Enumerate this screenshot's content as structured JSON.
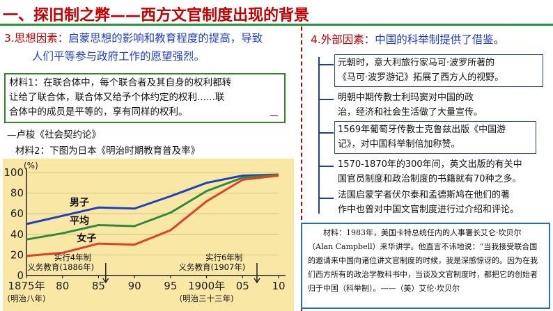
{
  "title": "一、探旧制之弊——西方文官制度出现的背景",
  "left": {
    "heading_label": "3.思想因素：",
    "heading_text_1": "启蒙思想的影响和教育程度的提高，导致",
    "heading_text_2": "人们平等参与政府工作的愿望强烈。",
    "material1_lines": [
      "材料1：在联合体中，每个联合者及其自身的权利都转",
      "让给了联合体，联合体又给予个体约定的权利......联",
      "合体中的成员是平等的，享有同样的权利。"
    ],
    "material1_dash": "—",
    "citation": "—卢梭《社会契约论》",
    "material2_label": "材料2：下图为日本《明治时期教育普及率》"
  },
  "chart_data": {
    "type": "line",
    "title": "",
    "ylabel": "(%)",
    "ylim": [
      0,
      100
    ],
    "yticks": [
      "0",
      "20",
      "40",
      "60",
      "80",
      "100"
    ],
    "x": [
      1875,
      1880,
      1885,
      1890,
      1895,
      1900,
      1905,
      1910
    ],
    "xticks": [
      "1875年",
      "80",
      "85",
      "90",
      "95",
      "1900年",
      "05",
      "10"
    ],
    "xtick_subs": [
      "(明治八年)",
      "(明治三十三年)"
    ],
    "series": [
      {
        "name": "男子",
        "color": "#1f3fbf",
        "points": [
          [
            1875,
            50
          ],
          [
            1880,
            58
          ],
          [
            1885,
            66
          ],
          [
            1890,
            65
          ],
          [
            1895,
            77
          ],
          [
            1900,
            90
          ],
          [
            1905,
            97
          ],
          [
            1910,
            98
          ]
        ]
      },
      {
        "name": "平均",
        "color": "#2e8b3e",
        "points": [
          [
            1875,
            35
          ],
          [
            1880,
            41
          ],
          [
            1885,
            49
          ],
          [
            1890,
            48
          ],
          [
            1895,
            61
          ],
          [
            1900,
            82
          ],
          [
            1905,
            95
          ],
          [
            1910,
            98
          ]
        ]
      },
      {
        "name": "女子",
        "color": "#e0402a",
        "points": [
          [
            1875,
            19
          ],
          [
            1880,
            22
          ],
          [
            1885,
            31
          ],
          [
            1890,
            30
          ],
          [
            1895,
            44
          ],
          [
            1900,
            72
          ],
          [
            1905,
            93
          ],
          [
            1910,
            97
          ]
        ]
      }
    ],
    "annotations": [
      {
        "text_1": "实行4年制",
        "text_2": "义务教育(1886年)",
        "x": 1886
      },
      {
        "text_1": "实行6年制",
        "text_2": "义务教育(1907年)",
        "x": 1907
      }
    ]
  },
  "right": {
    "heading_label": "4.外部因素：",
    "heading_text": "中国的科举制提供了借鉴。",
    "items": [
      {
        "line1": "元朝时，意大利旅行家马可·波罗所著的",
        "line2": "《马可·波罗游记》拓展了西方人的视野。"
      },
      {
        "line1": "明朝中期传教士利玛窦对中国的政",
        "line2": "治，经济和社会生活做了大量宣传。"
      },
      {
        "line1": "1569年葡萄牙传教士克鲁兹出版《中国游",
        "line2": "记》，对中国科举制倍加称赞。"
      },
      {
        "line1": "1570-1870年的300年间，英文出版的有关中",
        "line2": "国官员制度和政治制度的书籍就有70种之多。"
      },
      {
        "line1": "法国启蒙学者伏尔泰和孟德斯鸠在他们的著",
        "line2": "作中也曾对中国文官制度进行过介绍和评论。"
      }
    ],
    "bottom_material": "材料：1983年，美国卡特总统任内的人事署长艾仑·坎贝尔（Alan Campbell）来华讲学。他直言不讳地说：“当我接受联合国的邀请来中国向诸位讲文官制度的时候，我是深感惊讶的。因为在我们西方所有的政治学教科书中，当谈及文官制度时，都把它的创始者归于中国（科举制）。——（美）艾伦·坎贝尔"
  }
}
